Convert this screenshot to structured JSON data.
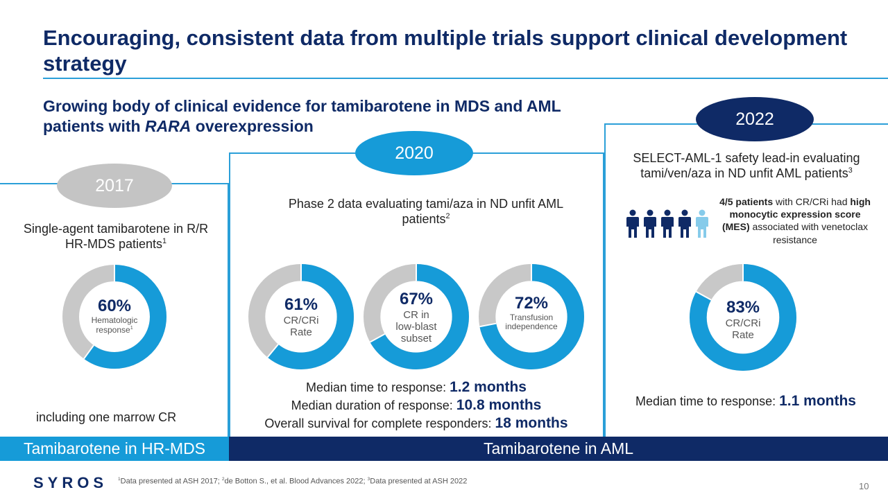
{
  "title": "Encouraging, consistent data from multiple trials support clinical development strategy",
  "subtitle_part1": "Growing body of clinical evidence for tamibarotene in MDS and AML patients with ",
  "subtitle_italic": "RARA",
  "subtitle_part2": " overexpression",
  "colors": {
    "navy": "#0f2a66",
    "blue": "#169bd8",
    "gray": "#c8c8c8",
    "light_blue": "#86cbea"
  },
  "panel_2017": {
    "year": "2017",
    "description": "Single-agent tamibarotene in R/R HR-MDS patients",
    "description_sup": "1",
    "donut": {
      "value": 60,
      "pct_label": "60%",
      "sub_label": "Hematologic response",
      "sub_sup": "1"
    },
    "note": "including one marrow CR"
  },
  "panel_2020": {
    "year": "2020",
    "description": "Phase 2 data evaluating tami/aza in ND unfit AML patients",
    "description_sup": "2",
    "donuts": [
      {
        "value": 61,
        "pct_label": "61%",
        "sub_line1": "CR/CRi",
        "sub_line2": "Rate",
        "sub_line3": ""
      },
      {
        "value": 67,
        "pct_label": "67%",
        "sub_line1": "CR in",
        "sub_line2": "low-blast",
        "sub_line3": "subset"
      },
      {
        "value": 72,
        "pct_label": "72%",
        "sub_line1": "Transfusion",
        "sub_line2": "independence",
        "sub_line3": ""
      }
    ],
    "stats": [
      {
        "label": "Median time to response: ",
        "value": "1.2 months"
      },
      {
        "label": "Median duration of response: ",
        "value": "10.8 months"
      },
      {
        "label": "Overall survival for complete responders: ",
        "value": "18 months"
      }
    ]
  },
  "panel_2022": {
    "year": "2022",
    "description": "SELECT-AML-1 safety lead-in evaluating tami/ven/aza in ND unfit AML patients",
    "description_sup": "3",
    "patients_bold1": "4/5 patients",
    "patients_text1": " with CR/CRi had ",
    "patients_bold2": "high monocytic expression score (MES)",
    "patients_text2": " associated with venetoclax resistance",
    "donut": {
      "value": 83,
      "pct_label": "83%",
      "sub_line1": "CR/CRi",
      "sub_line2": "Rate"
    },
    "stat_label": "Median time to response: ",
    "stat_value": "1.1 months"
  },
  "banners": {
    "mds": "Tamibarotene in HR-MDS",
    "aml": "Tamibarotene in AML"
  },
  "footnote": {
    "s1": "1",
    "t1": "Data presented at ASH 2017; ",
    "s2": "2",
    "t2": "de Botton S., et al. Blood Advances 2022; ",
    "s3": "3",
    "t3": "Data presented at ASH 2022"
  },
  "logo_text": "SYROS",
  "page_number": "10"
}
